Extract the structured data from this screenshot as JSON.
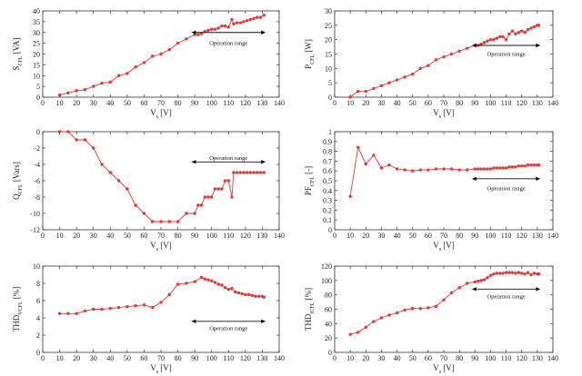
{
  "colors": {
    "series": "#e23a3a",
    "axis": "#333333",
    "grid": "#ffffff",
    "annotation": "#111111"
  },
  "chart_data": [
    {
      "id": "s_cfl",
      "type": "line",
      "ylabel_main": "S",
      "ylabel_sub": "CFL",
      "ylabel_unit": " [VA]",
      "xlabel_main": "V",
      "xlabel_sub": "s",
      "xlabel_unit": " [V]",
      "xlim": [
        0,
        140
      ],
      "ylim": [
        0,
        40
      ],
      "xticks": [
        0,
        10,
        20,
        30,
        40,
        50,
        60,
        70,
        80,
        90,
        100,
        110,
        120,
        130,
        140
      ],
      "yticks": [
        0,
        5,
        10,
        15,
        20,
        25,
        30,
        35,
        40
      ],
      "x": [
        10,
        15,
        20,
        25,
        30,
        35,
        40,
        45,
        50,
        55,
        60,
        65,
        70,
        75,
        80,
        85,
        90,
        92,
        94,
        96,
        98,
        100,
        102,
        104,
        106,
        108,
        110,
        112,
        113,
        115,
        117,
        119,
        121,
        123,
        125,
        127,
        129,
        131
      ],
      "y": [
        1,
        2,
        3,
        3.5,
        5,
        6.5,
        7,
        10,
        11,
        14,
        16,
        19,
        20,
        22,
        25,
        27,
        29,
        29,
        29.5,
        30.5,
        31,
        31.5,
        31.5,
        32,
        33,
        33,
        32.5,
        36,
        34,
        34.5,
        34.5,
        35,
        35.5,
        36,
        36.5,
        37,
        37,
        38
      ],
      "annotation": {
        "text": "Operation range",
        "x_from": 88,
        "x_to": 132,
        "y_arrow": 30,
        "y_text": 25
      }
    },
    {
      "id": "p_cfl",
      "type": "line",
      "ylabel_main": "P",
      "ylabel_sub": "CFL",
      "ylabel_unit": " [W]",
      "xlabel_main": "V",
      "xlabel_sub": "s",
      "xlabel_unit": " [V]",
      "xlim": [
        0,
        140
      ],
      "ylim": [
        0,
        30
      ],
      "xticks": [
        0,
        10,
        20,
        30,
        40,
        50,
        60,
        70,
        80,
        90,
        100,
        110,
        120,
        130,
        140
      ],
      "yticks": [
        0,
        5,
        10,
        15,
        20,
        25,
        30
      ],
      "x": [
        10,
        15,
        20,
        25,
        30,
        35,
        40,
        45,
        50,
        55,
        60,
        65,
        70,
        75,
        80,
        85,
        90,
        92,
        94,
        96,
        98,
        100,
        102,
        104,
        106,
        108,
        110,
        112,
        114,
        116,
        118,
        120,
        122,
        124,
        126,
        128,
        130,
        131
      ],
      "y": [
        0,
        2,
        2,
        3,
        4,
        5,
        6,
        7,
        8,
        10,
        11,
        13,
        14,
        15,
        16,
        17,
        18,
        18,
        18.5,
        19,
        19.5,
        20,
        20,
        20.5,
        21,
        21,
        20,
        22,
        23,
        22,
        22.5,
        23,
        22.5,
        23.5,
        24,
        24.5,
        25,
        25
      ],
      "annotation": {
        "text": "Operation range",
        "x_from": 88,
        "x_to": 132,
        "y_arrow": 18,
        "y_text": 15
      }
    },
    {
      "id": "q_cfl",
      "type": "line",
      "ylabel_main": "Q",
      "ylabel_sub": "CFL",
      "ylabel_unit": " [Vars]",
      "xlabel_main": "V",
      "xlabel_sub": "s",
      "xlabel_unit": " [V]",
      "xlim": [
        0,
        140
      ],
      "ylim": [
        -12,
        0
      ],
      "xticks": [
        0,
        10,
        20,
        30,
        40,
        50,
        60,
        70,
        80,
        90,
        100,
        110,
        120,
        130,
        140
      ],
      "yticks": [
        -12,
        -10,
        -8,
        -6,
        -4,
        -2,
        0
      ],
      "x": [
        10,
        15,
        20,
        25,
        30,
        35,
        40,
        45,
        50,
        55,
        60,
        65,
        70,
        75,
        80,
        85,
        90,
        92,
        94,
        96,
        98,
        100,
        102,
        104,
        106,
        108,
        110,
        112,
        113,
        115,
        117,
        119,
        121,
        123,
        125,
        127,
        129,
        131
      ],
      "y": [
        0,
        0,
        -1,
        -1,
        -2,
        -4,
        -5,
        -6,
        -7,
        -9,
        -10,
        -11,
        -11,
        -11,
        -11,
        -10,
        -10,
        -9,
        -9,
        -8,
        -8,
        -8,
        -7,
        -7,
        -7,
        -6,
        -6,
        -8,
        -5,
        -5,
        -5,
        -5,
        -5,
        -5,
        -5,
        -5,
        -5,
        -5
      ],
      "annotation": {
        "text": "Operation range",
        "x_from": 88,
        "x_to": 132,
        "y_arrow": -3.7,
        "y_text": -3.2
      }
    },
    {
      "id": "pf_cfl",
      "type": "line",
      "ylabel_main": "PF",
      "ylabel_sub": "CFL",
      "ylabel_unit": " [-]",
      "xlabel_main": "V",
      "xlabel_sub": "s",
      "xlabel_unit": " [V]",
      "xlim": [
        0,
        140
      ],
      "ylim": [
        0,
        1
      ],
      "xticks": [
        0,
        10,
        20,
        30,
        40,
        50,
        60,
        70,
        80,
        90,
        100,
        110,
        120,
        130,
        140
      ],
      "yticks": [
        0,
        0.1,
        0.2,
        0.3,
        0.4,
        0.5,
        0.6,
        0.7,
        0.8,
        0.9,
        1
      ],
      "x": [
        10,
        15,
        20,
        25,
        30,
        35,
        40,
        45,
        50,
        55,
        60,
        65,
        70,
        75,
        80,
        85,
        90,
        92,
        94,
        96,
        98,
        100,
        102,
        104,
        106,
        108,
        110,
        112,
        114,
        116,
        118,
        120,
        122,
        124,
        126,
        128,
        130,
        131
      ],
      "y": [
        0.34,
        0.84,
        0.67,
        0.76,
        0.63,
        0.66,
        0.62,
        0.61,
        0.6,
        0.61,
        0.61,
        0.62,
        0.62,
        0.62,
        0.61,
        0.61,
        0.62,
        0.62,
        0.62,
        0.62,
        0.62,
        0.62,
        0.63,
        0.63,
        0.63,
        0.63,
        0.63,
        0.64,
        0.64,
        0.64,
        0.65,
        0.65,
        0.65,
        0.66,
        0.66,
        0.66,
        0.66,
        0.66
      ],
      "annotation": {
        "text": "Operation range",
        "x_from": 88,
        "x_to": 132,
        "y_arrow": 0.52,
        "y_text": 0.42
      }
    },
    {
      "id": "thd_v",
      "type": "line",
      "ylabel_main": "THD",
      "ylabel_sub": "VCFL",
      "ylabel_unit": " [%]",
      "xlabel_main": "V",
      "xlabel_sub": "s",
      "xlabel_unit": " [V]",
      "xlim": [
        0,
        140
      ],
      "ylim": [
        0,
        10
      ],
      "xticks": [
        0,
        10,
        20,
        30,
        40,
        50,
        60,
        70,
        80,
        90,
        100,
        110,
        120,
        130,
        140
      ],
      "yticks": [
        0,
        2,
        4,
        6,
        8,
        10
      ],
      "x": [
        10,
        15,
        20,
        25,
        30,
        35,
        40,
        45,
        50,
        55,
        60,
        65,
        70,
        75,
        80,
        85,
        90,
        94,
        96,
        98,
        100,
        102,
        104,
        106,
        108,
        110,
        112,
        114,
        116,
        118,
        120,
        122,
        124,
        126,
        128,
        130,
        131
      ],
      "y": [
        4.5,
        4.5,
        4.5,
        4.8,
        5,
        5,
        5.1,
        5.2,
        5.3,
        5.4,
        5.5,
        5.2,
        5.8,
        6.7,
        7.9,
        8,
        8.2,
        8.7,
        8.5,
        8.4,
        8.3,
        8.1,
        7.9,
        7.8,
        7.5,
        7.3,
        7.4,
        7,
        6.9,
        6.8,
        6.7,
        6.7,
        6.6,
        6.5,
        6.5,
        6.5,
        6.4
      ],
      "annotation": {
        "text": "Operation range",
        "x_from": 88,
        "x_to": 132,
        "y_arrow": 3.6,
        "y_text": 2.8
      }
    },
    {
      "id": "thd_i",
      "type": "line",
      "ylabel_main": "THD",
      "ylabel_sub": "ICFL",
      "ylabel_unit": " [%]",
      "xlabel_main": "V",
      "xlabel_sub": "s",
      "xlabel_unit": " [V]",
      "xlim": [
        0,
        140
      ],
      "ylim": [
        0,
        120
      ],
      "xticks": [
        0,
        10,
        20,
        30,
        40,
        50,
        60,
        70,
        80,
        90,
        100,
        110,
        120,
        130,
        140
      ],
      "yticks": [
        0,
        20,
        40,
        60,
        80,
        100,
        120
      ],
      "x": [
        10,
        15,
        20,
        25,
        30,
        35,
        40,
        45,
        50,
        55,
        60,
        65,
        70,
        75,
        80,
        85,
        90,
        92,
        94,
        96,
        98,
        100,
        102,
        104,
        106,
        108,
        110,
        112,
        114,
        116,
        118,
        120,
        122,
        124,
        126,
        128,
        130,
        131
      ],
      "y": [
        25,
        28,
        35,
        43,
        48,
        52,
        55,
        59,
        61,
        61,
        62,
        64,
        73,
        83,
        90,
        96,
        98,
        99,
        100,
        101,
        104,
        107,
        109,
        110,
        110,
        110,
        111,
        111,
        111,
        110,
        111,
        110,
        109,
        111,
        108,
        110,
        109,
        109
      ],
      "annotation": {
        "text": "Operation range",
        "x_from": 88,
        "x_to": 132,
        "y_arrow": 88,
        "y_text": 78
      }
    }
  ]
}
